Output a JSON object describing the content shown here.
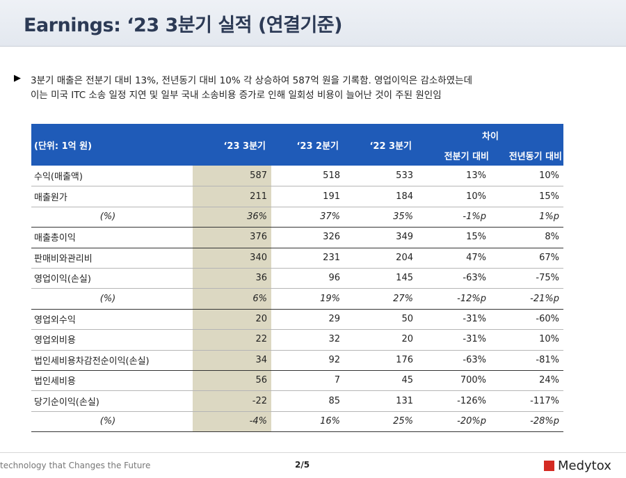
{
  "header": {
    "title": "Earnings: ‘23 3분기 실적 (연결기준)"
  },
  "bullets": [
    "3분기 매출은 전분기 대비 13%, 전년동기 대비 10% 각 상승하여 587억 원을 기록함. 영업이익은 감소하였는데",
    "이는 미국 ITC 소송 일정 지연 및 일부 국내 소송비용 증가로 인해 일회성 비용이 늘어난 것이 주된 원인임"
  ],
  "table": {
    "unit": "(단위: 1억 원)",
    "columns": [
      "‘23 3분기",
      "‘23 2분기",
      "‘22 3분기"
    ],
    "diff_header": "차이",
    "diff_columns": [
      "전분기 대비",
      "전년동기 대비"
    ],
    "rows": [
      [
        "수익(매출액)",
        "587",
        "518",
        "533",
        "13%",
        "10%"
      ],
      [
        "매출원가",
        "211",
        "191",
        "184",
        "10%",
        "15%"
      ],
      [
        "(%)",
        "36%",
        "37%",
        "35%",
        "-1%p",
        "1%p"
      ],
      [
        "매출총이익",
        "376",
        "326",
        "349",
        "15%",
        "8%"
      ],
      [
        "판매비와관리비",
        "340",
        "231",
        "204",
        "47%",
        "67%"
      ],
      [
        "영업이익(손실)",
        "36",
        "96",
        "145",
        "-63%",
        "-75%"
      ],
      [
        "(%)",
        "6%",
        "19%",
        "27%",
        "-12%p",
        "-21%p"
      ],
      [
        "영업외수익",
        "20",
        "29",
        "50",
        "-31%",
        "-60%"
      ],
      [
        "영업외비용",
        "22",
        "32",
        "20",
        "-31%",
        "10%"
      ],
      [
        "법인세비용차감전순이익(손실)",
        "34",
        "92",
        "176",
        "-63%",
        "-81%"
      ],
      [
        "법인세비용",
        "56",
        "7",
        "45",
        "700%",
        "24%"
      ],
      [
        "당기순이익(손실)",
        "-22",
        "85",
        "131",
        "-126%",
        "-117%"
      ],
      [
        "(%)",
        "-4%",
        "16%",
        "25%",
        "-20%p",
        "-28%p"
      ]
    ]
  },
  "footer": {
    "tagline": "technology that Changes the Future",
    "page": "2/5",
    "logo": "Medytox"
  }
}
